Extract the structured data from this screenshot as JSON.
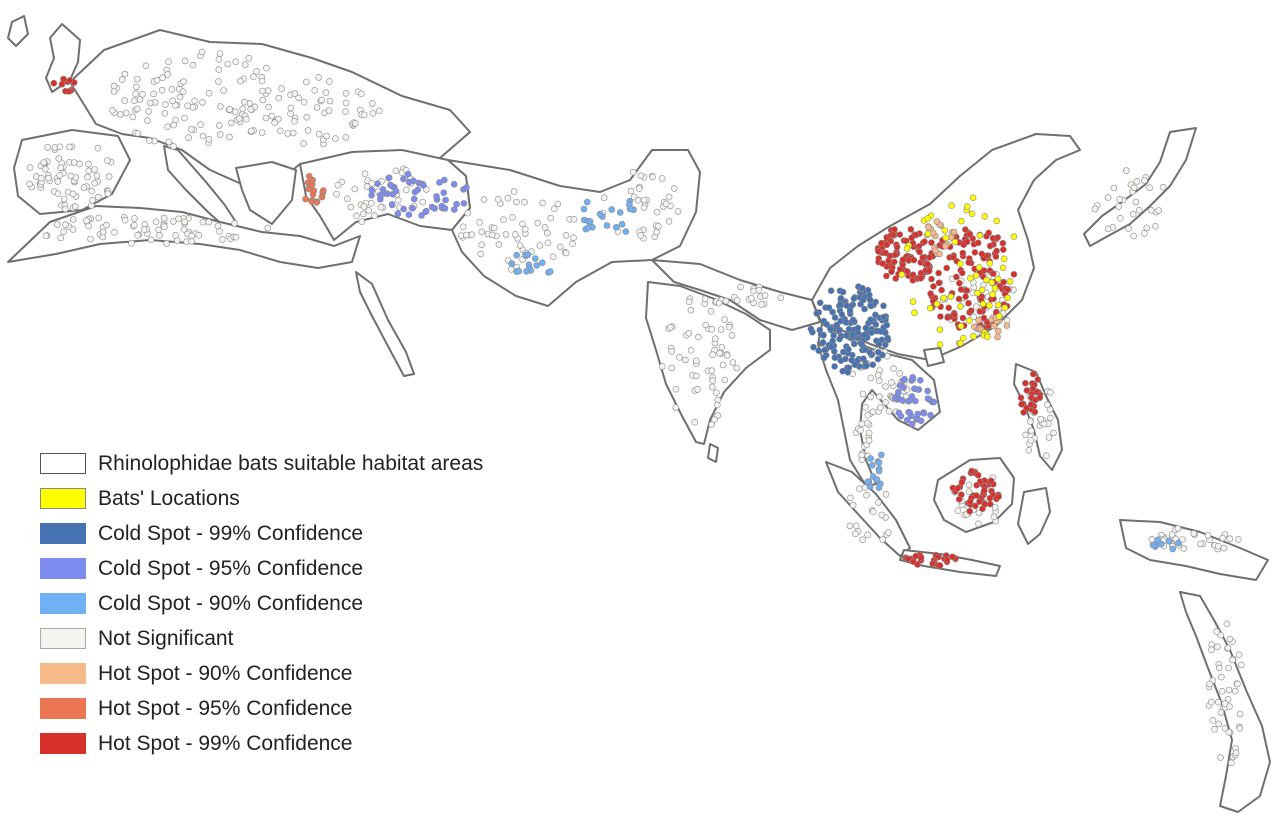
{
  "legend": {
    "items": [
      {
        "label": "Rhinolophidae bats suitable habitat areas",
        "color": "#ffffff",
        "border": "#555555"
      },
      {
        "label": "Bats' Locations",
        "color": "#ffff00",
        "border": "#888888"
      },
      {
        "label": "Cold Spot - 99% Confidence",
        "color": "#4472b3",
        "border": "#4472b3"
      },
      {
        "label": "Cold Spot - 95% Confidence",
        "color": "#7c8cf0",
        "border": "#7c8cf0"
      },
      {
        "label": "Cold Spot - 90% Confidence",
        "color": "#70b0f5",
        "border": "#70b0f5"
      },
      {
        "label": "Not Significant",
        "color": "#f4f4f0",
        "border": "#aaaaaa"
      },
      {
        "label": "Hot Spot - 90% Confidence",
        "color": "#f5b98a",
        "border": "#f5b98a"
      },
      {
        "label": "Hot Spot - 95% Confidence",
        "color": "#ec7653",
        "border": "#ec7653"
      },
      {
        "label": "Hot Spot - 99% Confidence",
        "color": "#d8312c",
        "border": "#d8312c"
      }
    ]
  },
  "style": {
    "land_stroke": "#6f6f6f",
    "point_stroke": "#8a8a8a",
    "not_significant": "#f4f4f0"
  }
}
